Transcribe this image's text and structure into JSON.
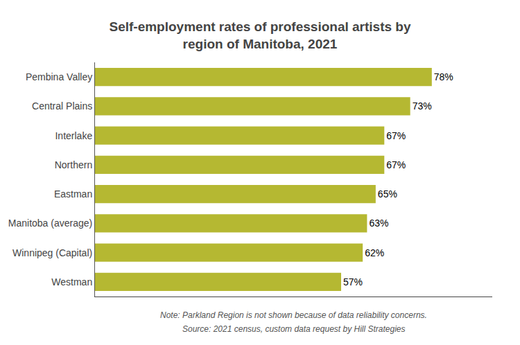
{
  "chart_data": {
    "type": "bar",
    "orientation": "horizontal",
    "title": "Self-employment rates of professional artists by\nregion of Manitoba, 2021",
    "categories": [
      "Westman",
      "Winnipeg (Capital)",
      "Manitoba (average)",
      "Eastman",
      "Northern",
      "Interlake",
      "Central Plains",
      "Pembina Valley"
    ],
    "values": [
      57,
      62,
      63,
      65,
      67,
      67,
      73,
      78
    ],
    "value_labels": [
      "57%",
      "62%",
      "63%",
      "65%",
      "67%",
      "67%",
      "73%",
      "78%"
    ],
    "data_labels": true,
    "color": "#b5b832",
    "xlim": [
      0,
      92
    ],
    "tick_labels": "y",
    "grid": false,
    "annotations": [
      "Note: Parkland Region is not shown because of data reliability concerns.",
      "Source: 2021 census, custom data request by Hill Strategies"
    ]
  }
}
